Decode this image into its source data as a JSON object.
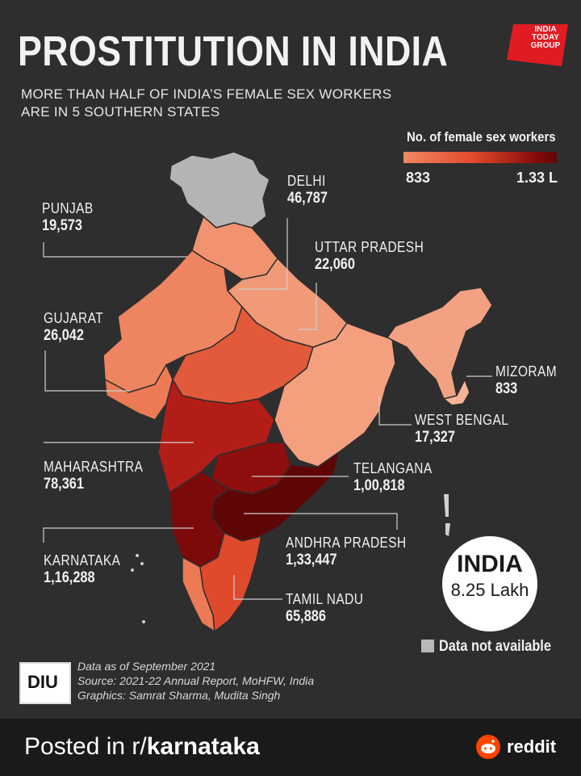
{
  "header": {
    "title": "PROSTITUTION IN INDIA",
    "subtitle_line1": "MORE THAN HALF OF INDIA’S FEMALE SEX WORKERS",
    "subtitle_line2": "ARE IN 5 SOUTHERN STATES",
    "logo_line1": "INDIA",
    "logo_line2": "TODAY",
    "logo_line3": "GROUP"
  },
  "legend": {
    "title": "No. of female sex workers",
    "min": "833",
    "max": "1.33 L"
  },
  "states": {
    "punjab": {
      "name": "PUNJAB",
      "value": "19,573"
    },
    "delhi": {
      "name": "DELHI",
      "value": "46,787"
    },
    "uttar_pradesh": {
      "name": "UTTAR PRADESH",
      "value": "22,060"
    },
    "gujarat": {
      "name": "GUJARAT",
      "value": "26,042"
    },
    "mizoram": {
      "name": "MIZORAM",
      "value": "833"
    },
    "west_bengal": {
      "name": "WEST BENGAL",
      "value": "17,327"
    },
    "maharashtra": {
      "name": "MAHARASHTRA",
      "value": "78,361"
    },
    "telangana": {
      "name": "TELANGANA",
      "value": "1,00,818"
    },
    "karnataka": {
      "name": "KARNATAKA",
      "value": "1,16,288"
    },
    "andhra_pradesh": {
      "name": "ANDHRA PRADESH",
      "value": "1,33,447"
    },
    "tamil_nadu": {
      "name": "TAMIL NADU",
      "value": "65,886"
    }
  },
  "total": {
    "name": "INDIA",
    "value": "8.25 Lakh"
  },
  "not_available": "Data not available",
  "notes": {
    "line1": "Data as of September 2021",
    "line2": "Source: 2021-22 Annual Report, MoHFW, India",
    "line3": "Graphics: Samrat Sharma, Mudita Singh"
  },
  "diu_logo": "DIU",
  "footer": {
    "posted_prefix": "Posted in r/",
    "subreddit": "karnataka",
    "brand": "reddit"
  },
  "colors": {
    "background": "#2e2e2e",
    "light": "#f08860",
    "mid": "#e24a2d",
    "dark": "#8a0c0c",
    "darkest": "#5e0606",
    "na": "#b8b8b8",
    "reddit": "#ff4500"
  }
}
